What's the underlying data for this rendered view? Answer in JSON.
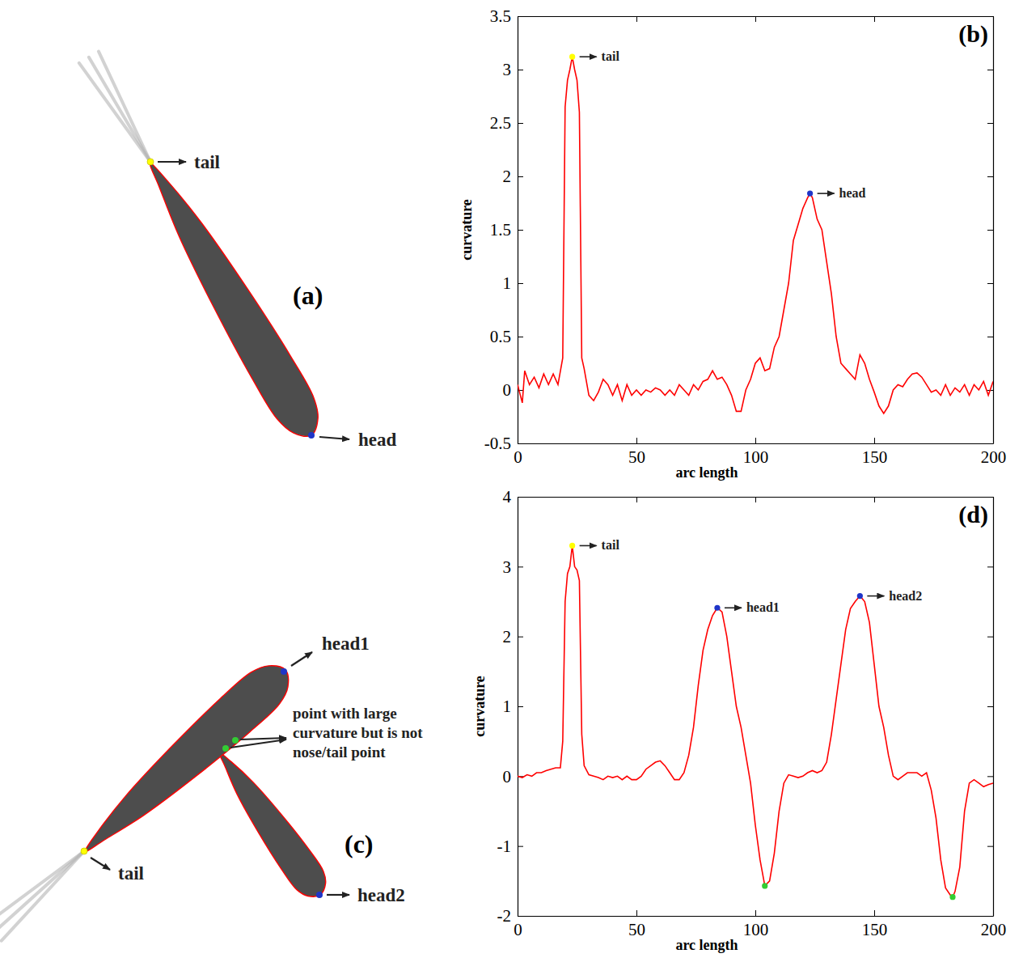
{
  "chart_data": [
    {
      "type": "line",
      "panel": "(b)",
      "x_label": "arc length",
      "y_label": "curvature",
      "xlim": [
        0,
        200
      ],
      "xticks": [
        0,
        50,
        100,
        150,
        200
      ],
      "ylim": [
        -0.5,
        3.5
      ],
      "yticks": [
        -0.5,
        0,
        0.5,
        1,
        1.5,
        2,
        2.5,
        3,
        3.5
      ],
      "x": [
        0,
        2,
        3,
        5,
        7,
        9,
        11,
        13,
        15,
        17,
        19,
        20,
        21,
        22,
        23,
        24,
        25,
        26,
        27,
        28,
        30,
        32,
        34,
        36,
        38,
        40,
        42,
        44,
        46,
        48,
        50,
        52,
        54,
        56,
        58,
        60,
        62,
        64,
        66,
        68,
        70,
        72,
        74,
        76,
        78,
        80,
        82,
        84,
        86,
        88,
        90,
        92,
        94,
        96,
        98,
        100,
        102,
        104,
        106,
        108,
        110,
        112,
        114,
        116,
        118,
        120,
        122,
        123,
        124,
        126,
        128,
        130,
        132,
        134,
        136,
        138,
        140,
        142,
        144,
        146,
        148,
        150,
        152,
        154,
        156,
        158,
        160,
        162,
        164,
        166,
        168,
        170,
        172,
        174,
        176,
        178,
        180,
        182,
        184,
        186,
        188,
        190,
        192,
        194,
        196,
        198,
        200
      ],
      "series": [
        {
          "color": "#ff0000",
          "values": [
            0.05,
            -0.12,
            0.18,
            0.05,
            0.12,
            0.02,
            0.15,
            0.05,
            0.15,
            0.05,
            0.3,
            2.65,
            2.9,
            3.0,
            3.12,
            3.0,
            2.9,
            2.6,
            0.3,
            0.2,
            -0.05,
            -0.1,
            -0.02,
            0.1,
            0.05,
            -0.05,
            0.05,
            -0.1,
            0.05,
            -0.05,
            0.0,
            -0.05,
            0.0,
            -0.02,
            0.02,
            0.0,
            -0.05,
            0.0,
            -0.05,
            0.05,
            0.0,
            -0.05,
            0.05,
            0.0,
            0.08,
            0.1,
            0.18,
            0.1,
            0.12,
            0.05,
            -0.05,
            -0.2,
            -0.2,
            0.0,
            0.1,
            0.25,
            0.3,
            0.18,
            0.2,
            0.4,
            0.5,
            0.75,
            1.0,
            1.4,
            1.55,
            1.7,
            1.8,
            1.84,
            1.8,
            1.6,
            1.5,
            1.2,
            0.9,
            0.5,
            0.25,
            0.2,
            0.15,
            0.1,
            0.33,
            0.25,
            0.1,
            -0.02,
            -0.15,
            -0.22,
            -0.15,
            0.0,
            0.05,
            0.03,
            0.1,
            0.15,
            0.16,
            0.12,
            0.05,
            -0.02,
            0.0,
            -0.05,
            0.05,
            -0.05,
            0.02,
            -0.02,
            0.05,
            -0.05,
            0.05,
            0.0,
            0.08,
            -0.05,
            0.08
          ]
        }
      ],
      "annotations": [
        {
          "x": 23,
          "y": 3.12,
          "label": "tail",
          "color": "#ffff00"
        },
        {
          "x": 123,
          "y": 1.84,
          "label": "head",
          "color": "#1f35c8"
        }
      ]
    },
    {
      "type": "line",
      "panel": "(d)",
      "x_label": "arc length",
      "y_label": "curvature",
      "xlim": [
        0,
        200
      ],
      "xticks": [
        0,
        50,
        100,
        150,
        200
      ],
      "ylim": [
        -2,
        4
      ],
      "yticks": [
        -2,
        -1,
        0,
        1,
        2,
        3,
        4
      ],
      "x": [
        0,
        2,
        4,
        6,
        8,
        10,
        12,
        14,
        16,
        18,
        19,
        20,
        21,
        22,
        23,
        24,
        25,
        26,
        27,
        28,
        30,
        32,
        34,
        36,
        38,
        40,
        42,
        44,
        46,
        48,
        50,
        52,
        54,
        56,
        58,
        60,
        62,
        64,
        66,
        68,
        70,
        72,
        74,
        76,
        78,
        80,
        82,
        84,
        86,
        88,
        90,
        92,
        94,
        96,
        98,
        100,
        102,
        104,
        106,
        108,
        110,
        112,
        114,
        116,
        118,
        120,
        122,
        124,
        126,
        128,
        130,
        132,
        134,
        136,
        138,
        140,
        142,
        144,
        146,
        148,
        150,
        152,
        154,
        156,
        158,
        160,
        162,
        164,
        166,
        168,
        170,
        172,
        174,
        176,
        178,
        180,
        182,
        183,
        184,
        186,
        188,
        190,
        192,
        194,
        196,
        198,
        200
      ],
      "series": [
        {
          "color": "#ff0000",
          "values": [
            0.0,
            -0.02,
            0.02,
            0.0,
            0.05,
            0.05,
            0.08,
            0.1,
            0.12,
            0.12,
            0.5,
            2.5,
            2.9,
            3.0,
            3.3,
            3.0,
            2.95,
            2.8,
            0.6,
            0.15,
            0.02,
            0.0,
            -0.02,
            -0.05,
            0.0,
            -0.02,
            0.0,
            -0.05,
            0.0,
            -0.05,
            -0.05,
            0.0,
            0.1,
            0.15,
            0.2,
            0.22,
            0.15,
            0.05,
            -0.05,
            -0.05,
            0.05,
            0.3,
            0.7,
            1.3,
            1.8,
            2.1,
            2.3,
            2.41,
            2.35,
            2.0,
            1.5,
            1.0,
            0.7,
            0.3,
            -0.1,
            -0.7,
            -1.2,
            -1.57,
            -1.5,
            -1.1,
            -0.5,
            -0.1,
            0.02,
            0.0,
            -0.02,
            0.0,
            0.05,
            0.08,
            0.05,
            0.08,
            0.2,
            0.6,
            1.1,
            1.6,
            2.1,
            2.4,
            2.5,
            2.58,
            2.5,
            2.2,
            1.6,
            1.0,
            0.7,
            0.3,
            0.0,
            -0.05,
            0.0,
            0.05,
            0.05,
            0.05,
            0.0,
            0.05,
            -0.2,
            -0.6,
            -1.2,
            -1.6,
            -1.7,
            -1.73,
            -1.65,
            -1.3,
            -0.5,
            -0.1,
            -0.05,
            -0.1,
            -0.15,
            -0.12,
            -0.1
          ]
        }
      ],
      "annotations": [
        {
          "x": 23,
          "y": 3.3,
          "label": "tail",
          "color": "#ffff00"
        },
        {
          "x": 84,
          "y": 2.41,
          "label": "head1",
          "color": "#1f35c8"
        },
        {
          "x": 144,
          "y": 2.58,
          "label": "head2",
          "color": "#1f35c8"
        },
        {
          "x": 104,
          "y": -1.57,
          "color": "#33cc33"
        },
        {
          "x": 183,
          "y": -1.73,
          "color": "#33cc33"
        }
      ]
    }
  ],
  "images": [
    {
      "panel": "(a)",
      "points": [
        {
          "label": "tail",
          "color": "#ffff00"
        },
        {
          "label": "head",
          "color": "#1f35c8"
        }
      ]
    },
    {
      "panel": "(c)",
      "points": [
        {
          "label": "head1",
          "color": "#1f35c8"
        },
        {
          "label": "tail",
          "color": "#ffff00"
        },
        {
          "label": "head2",
          "color": "#1f35c8"
        }
      ],
      "highlight": {
        "label": "point with large curvature but is not nose/tail point",
        "color": "#33cc33"
      }
    }
  ]
}
